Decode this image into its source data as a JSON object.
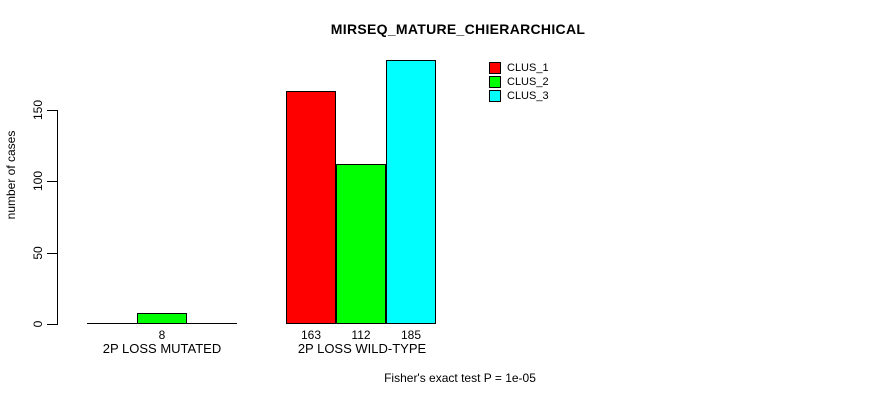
{
  "chart_data": {
    "type": "bar",
    "title": "MIRSEQ_MATURE_CHIERARCHICAL",
    "ylabel": "number of cases",
    "xlabel": "",
    "categories": [
      "2P LOSS MUTATED",
      "2P LOSS WILD-TYPE"
    ],
    "series": [
      {
        "name": "CLUS_1",
        "color": "#FF0000",
        "values": [
          0,
          163
        ]
      },
      {
        "name": "CLUS_2",
        "color": "#00FF00",
        "values": [
          8,
          112
        ]
      },
      {
        "name": "CLUS_3",
        "color": "#00FFFF",
        "values": [
          0,
          185
        ]
      }
    ],
    "value_labels_shown": [
      "8",
      "163",
      "112",
      "185"
    ],
    "yticks": [
      0,
      50,
      100,
      150
    ],
    "ylim": [
      0,
      185
    ],
    "grid": false,
    "legend_position": "top-right",
    "annotation": "Fisher's exact test P = 1e-05",
    "axis_color": "#000000",
    "background_color": "#FFFFFF"
  }
}
